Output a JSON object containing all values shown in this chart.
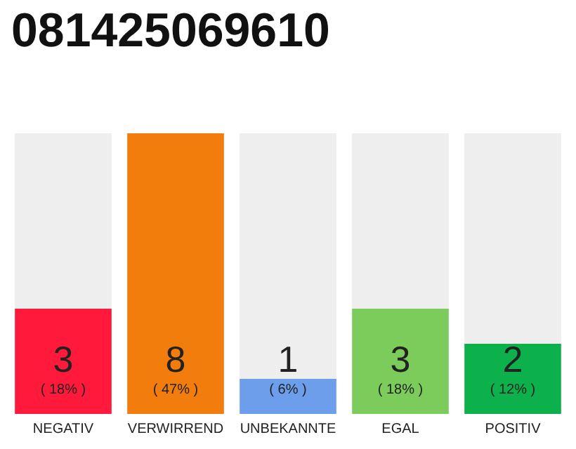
{
  "chart_data": {
    "type": "bar",
    "title": "081425069610",
    "categories": [
      "NEGATIV",
      "VERWIRREND",
      "UNBEKANNTE",
      "EGAL",
      "POSITIV"
    ],
    "values": [
      3,
      8,
      1,
      3,
      2
    ],
    "colors": [
      "#ff1a3c",
      "#f27d0c",
      "#6d9eeb",
      "#7ccc5c",
      "#0db14b"
    ],
    "value_labels": [
      "3\n( 18% )",
      "8\n( 47% )",
      "1\n( 6% )",
      "3\n( 18% )",
      "2\n( 12% )"
    ]
  }
}
